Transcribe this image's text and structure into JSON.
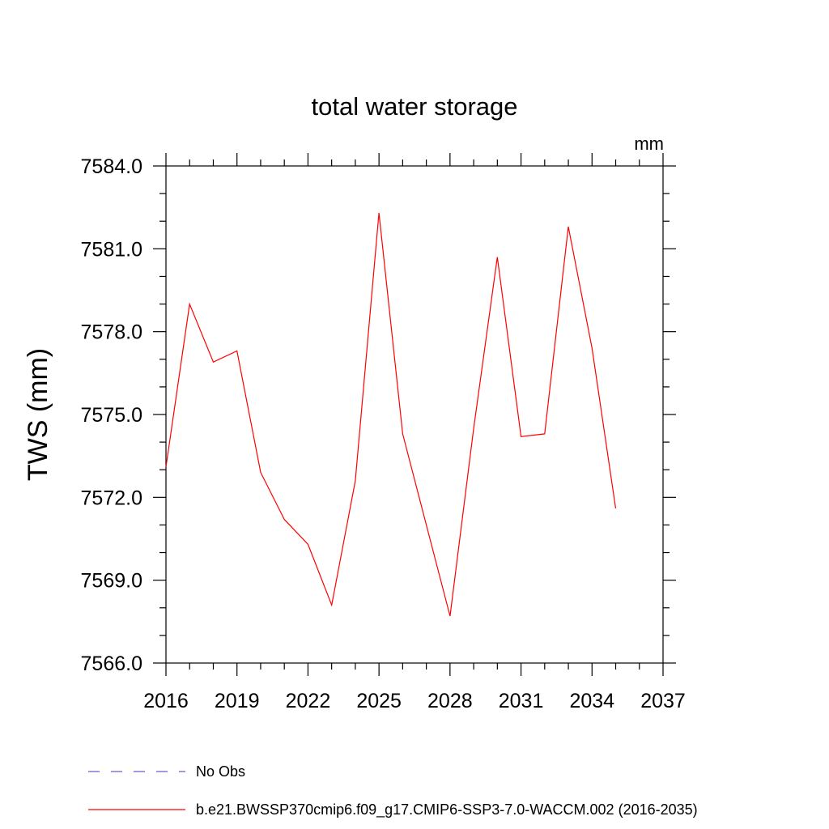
{
  "chart_data": {
    "type": "line",
    "title": "total water storage",
    "units": "mm",
    "ylabel": "TWS  (mm)",
    "xlabel": "",
    "xlim": [
      2016,
      2037
    ],
    "ylim": [
      7566.0,
      7584.0
    ],
    "xticks": [
      "2016",
      "2019",
      "2022",
      "2025",
      "2028",
      "2031",
      "2034",
      "2037"
    ],
    "yticks": [
      "7566.0",
      "7569.0",
      "7572.0",
      "7575.0",
      "7578.0",
      "7581.0",
      "7584.0"
    ],
    "grid": false,
    "legend_position": "bottom",
    "series": [
      {
        "name": "No Obs",
        "color": "#6a5acd",
        "dash": "dashed",
        "x": [],
        "y": []
      },
      {
        "name": "b.e21.BWSSP370cmip6.f09_g17.CMIP6-SSP3-7.0-WACCM.002 (2016-2035)",
        "color": "#ff0000",
        "dash": "solid",
        "x": [
          2016,
          2017,
          2018,
          2019,
          2020,
          2021,
          2022,
          2023,
          2024,
          2025,
          2026,
          2027,
          2028,
          2029,
          2030,
          2031,
          2032,
          2033,
          2034,
          2035
        ],
        "y": [
          7573.1,
          7579.0,
          7576.9,
          7577.3,
          7572.9,
          7571.2,
          7570.3,
          7568.1,
          7572.6,
          7582.3,
          7574.3,
          7571.0,
          7567.7,
          7574.5,
          7580.7,
          7574.2,
          7574.3,
          7581.8,
          7577.4,
          7571.6
        ]
      }
    ]
  }
}
